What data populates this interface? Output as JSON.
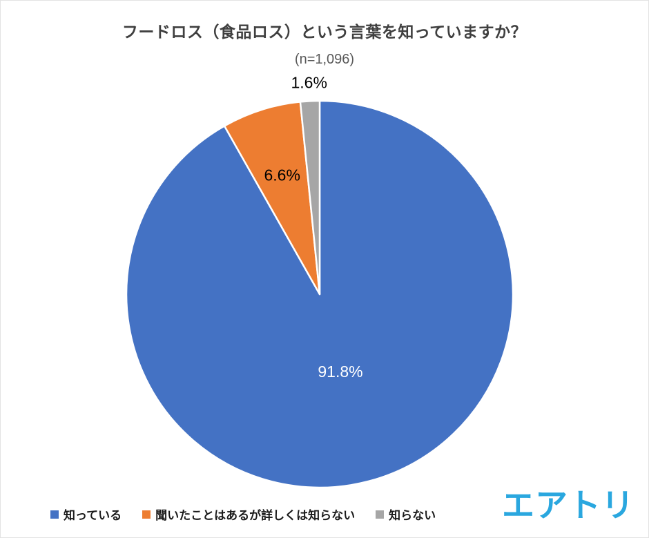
{
  "chart_data": {
    "type": "pie",
    "title": "フードロス（食品ロス）という言葉を知っていますか？",
    "subtitle": "(n=1,096)",
    "start_angle": 0,
    "direction": "clockwise",
    "legend_position": "bottom",
    "slices": [
      {
        "label": "知っている",
        "value": 91.8,
        "display": "91.8%",
        "color": "#4472C4",
        "label_color": "#FFFFFF"
      },
      {
        "label": "聞いたことはあるが詳しくは知らない",
        "value": 6.6,
        "display": "6.6%",
        "color": "#ED7D31",
        "label_color": "#000000"
      },
      {
        "label": "知らない",
        "value": 1.6,
        "display": "1.6%",
        "color": "#A6A6A6",
        "label_color": "#000000"
      }
    ]
  },
  "branding": {
    "logo_text": "エアトリ",
    "logo_color": "#2AA7DF"
  }
}
